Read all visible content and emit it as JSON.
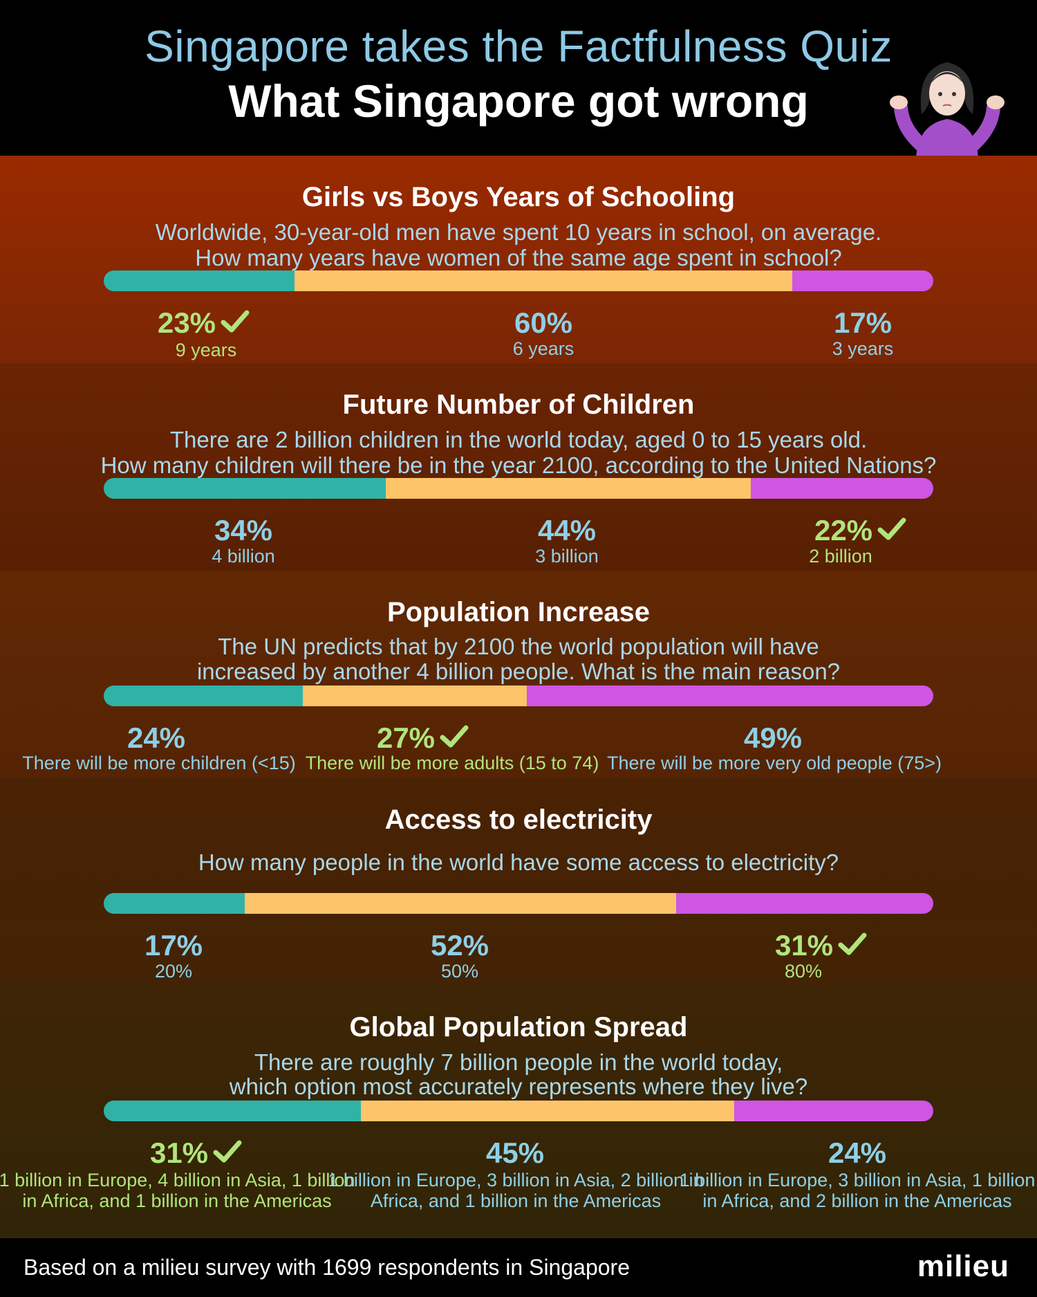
{
  "header": {
    "subtitle": "Singapore takes the Factfulness Quiz",
    "title": "What Singapore got wrong"
  },
  "colors": {
    "segment_1": "#2fb3a6",
    "segment_2": "#fdc46a",
    "segment_3": "#cf55e3",
    "correct_text": "#b0e57c",
    "wrong_text": "#8ed0e6"
  },
  "chart_data": [
    {
      "type": "bar",
      "title": "Girls vs Boys Years of Schooling",
      "question": [
        "Worldwide, 30-year-old men have spent 10 years in school, on average.",
        "How many years have women of the same age spent in school?"
      ],
      "categories": [
        "9 years",
        "6 years",
        "3 years"
      ],
      "values": [
        23,
        60,
        17
      ],
      "value_labels": [
        "23%",
        "60%",
        "17%"
      ],
      "correct_index": 0
    },
    {
      "type": "bar",
      "title": "Future Number of Children",
      "question": [
        "There are 2 billion children in the world today, aged 0 to 15 years old.",
        "How many children will there be in the year 2100, according to the United Nations?"
      ],
      "categories": [
        "4 billion",
        "3 billion",
        "2 billion"
      ],
      "values": [
        34,
        44,
        22
      ],
      "value_labels": [
        "34%",
        "44%",
        "22%"
      ],
      "correct_index": 2
    },
    {
      "type": "bar",
      "title": "Population Increase",
      "question": [
        "The UN predicts that by 2100 the world population will have",
        "increased by another 4 billion people. What is the main reason?"
      ],
      "categories": [
        "There will be more children (<15)",
        "There will be more adults (15 to 74)",
        "There will be more very old people (75>)"
      ],
      "values": [
        24,
        27,
        49
      ],
      "value_labels": [
        "24%",
        "27%",
        "49%"
      ],
      "correct_index": 1
    },
    {
      "type": "bar",
      "title": "Access to electricity",
      "question": [
        "How many people in the world have some access to electricity?"
      ],
      "categories": [
        "20%",
        "50%",
        "80%"
      ],
      "values": [
        17,
        52,
        31
      ],
      "value_labels": [
        "17%",
        "52%",
        "31%"
      ],
      "correct_index": 2
    },
    {
      "type": "bar",
      "title": "Global Population Spread",
      "question": [
        "There are roughly 7 billion people in the world today,",
        "which option most accurately represents where they live?"
      ],
      "categories": [
        [
          "1 billion in Europe, 4 billion in Asia, 1 billion",
          "in Africa, and 1 billion in the Americas"
        ],
        [
          "1 billion in Europe, 3 billion in Asia, 2 billion in",
          "Africa, and 1 billion in the Americas"
        ],
        [
          "1 billion in Europe, 3 billion in Asia, 1 billion",
          "in Africa, and 2 billion in the Americas"
        ]
      ],
      "values": [
        31,
        45,
        24
      ],
      "value_labels": [
        "31%",
        "45%",
        "24%"
      ],
      "correct_index": 0
    }
  ],
  "footer": {
    "note": "Based on a milieu survey with 1699 respondents in Singapore",
    "brand": "milieu"
  }
}
